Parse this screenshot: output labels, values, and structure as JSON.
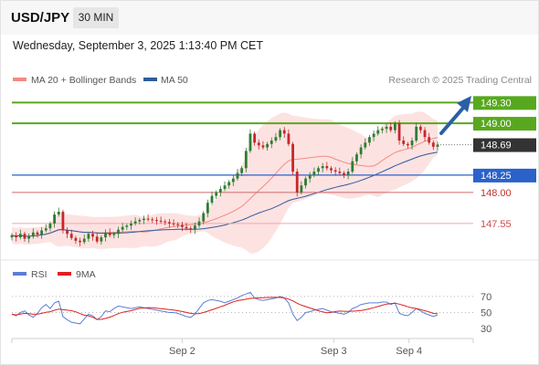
{
  "header": {
    "symbol": "USD/JPY",
    "timeframe": "30 MIN",
    "datetime": "Wednesday, September 3, 2025 1:13:40 PM CET"
  },
  "legend": {
    "items": [
      {
        "label": "MA 20 + Bollinger Bands",
        "color": "#f28b82"
      },
      {
        "label": "MA 50",
        "color": "#2f5b9a"
      }
    ],
    "credit": "Research © 2025 Trading Central"
  },
  "levels": [
    {
      "label": "149.30",
      "value": 149.3,
      "style": "green-box"
    },
    {
      "label": "149.00",
      "value": 149.0,
      "style": "green-box"
    },
    {
      "label": "148.69",
      "value": 148.69,
      "style": "price-box"
    },
    {
      "label": "148.25",
      "value": 148.25,
      "style": "blue-box"
    },
    {
      "label": "148.00",
      "value": 148.0,
      "style": "red-text"
    },
    {
      "label": "147.55",
      "value": 147.55,
      "style": "pink-text"
    }
  ],
  "rsi_panel": {
    "legend": [
      {
        "label": "RSI",
        "color": "#5b7fd6"
      },
      {
        "label": "9MA",
        "color": "#e02020"
      }
    ],
    "ticks": [
      {
        "label": "70",
        "value": 70
      },
      {
        "label": "50",
        "value": 50
      },
      {
        "label": "30",
        "value": 30
      }
    ]
  },
  "x_axis": {
    "labels": [
      {
        "label": "Sep 2",
        "pos": 0.4
      },
      {
        "label": "Sep 3",
        "pos": 0.756
      },
      {
        "label": "Sep 4",
        "pos": 0.933
      }
    ]
  },
  "colors": {
    "up": "#2e7d32",
    "down": "#c62828",
    "green_line": "#58a81f",
    "blue_line": "#2a62c9",
    "red_line": "#e06060",
    "price_box": "#333333",
    "band_fill": "#fde2e2",
    "ma20": "#f28b82",
    "ma50": "#2f5b9a",
    "arrow": "#2a5fa8"
  },
  "chart_data": {
    "type": "candlestick",
    "price_range": [
      147.1,
      149.45
    ],
    "series": [
      {
        "name": "USD/JPY"
      },
      {
        "name": "MA 20 + Bollinger Bands"
      },
      {
        "name": "MA 50"
      },
      {
        "name": "RSI"
      },
      {
        "name": "9MA"
      }
    ],
    "candles": [
      147.38,
      147.35,
      147.4,
      147.33,
      147.36,
      147.42,
      147.39,
      147.45,
      147.48,
      147.55,
      147.68,
      147.72,
      147.45,
      147.4,
      147.34,
      147.3,
      147.28,
      147.33,
      147.4,
      147.36,
      147.29,
      147.35,
      147.42,
      147.38,
      147.4,
      147.46,
      147.5,
      147.52,
      147.55,
      147.58,
      147.6,
      147.62,
      147.61,
      147.6,
      147.59,
      147.58,
      147.57,
      147.55,
      147.54,
      147.53,
      147.5,
      147.48,
      147.46,
      147.52,
      147.58,
      147.7,
      147.85,
      147.95,
      148.0,
      148.05,
      148.1,
      148.15,
      148.2,
      148.28,
      148.35,
      148.6,
      148.85,
      148.72,
      148.68,
      148.65,
      148.7,
      148.75,
      148.8,
      148.9,
      148.85,
      148.7,
      148.3,
      148.0,
      148.1,
      148.2,
      148.25,
      148.3,
      148.35,
      148.38,
      148.35,
      148.32,
      148.3,
      148.28,
      148.25,
      148.3,
      148.45,
      148.55,
      148.65,
      148.72,
      148.8,
      148.85,
      148.9,
      148.92,
      148.95,
      148.9,
      149.0,
      148.75,
      148.7,
      148.68,
      148.75,
      148.95,
      148.9,
      148.8,
      148.72,
      148.66,
      148.69
    ],
    "rsi": [
      48,
      46,
      50,
      52,
      47,
      44,
      49,
      56,
      60,
      55,
      62,
      64,
      45,
      41,
      38,
      37,
      36,
      42,
      48,
      46,
      41,
      45,
      52,
      51,
      55,
      58,
      57,
      56,
      55,
      56,
      57,
      56,
      55,
      54,
      53,
      52,
      51,
      50,
      50,
      49,
      47,
      45,
      44,
      48,
      55,
      62,
      65,
      66,
      65,
      64,
      62,
      64,
      66,
      68,
      71,
      73,
      75,
      68,
      66,
      65,
      66,
      67,
      68,
      70,
      68,
      62,
      48,
      40,
      44,
      50,
      51,
      53,
      54,
      55,
      53,
      51,
      50,
      49,
      48,
      50,
      55,
      57,
      60,
      61,
      62,
      62,
      62,
      63,
      63,
      60,
      62,
      49,
      47,
      46,
      50,
      55,
      52,
      49,
      47,
      45,
      47
    ]
  }
}
